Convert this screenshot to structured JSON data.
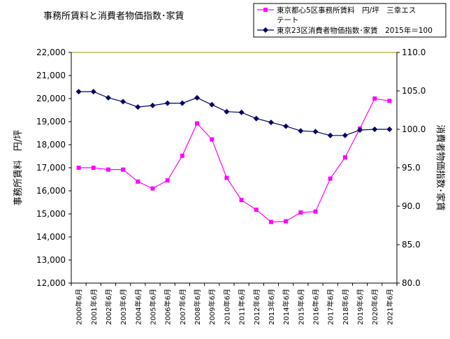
{
  "chart_data": {
    "type": "line",
    "title": "事務所賃料と消費者物価指数･家賃",
    "ylabel_left": "事務所賃料　円/坪",
    "ylabel_right": "消費者物価指数･家賃",
    "ylim_left": [
      12000,
      22000
    ],
    "ylim_right": [
      80.0,
      110.0
    ],
    "yticks_left": [
      "12,000",
      "13,000",
      "14,000",
      "15,000",
      "16,000",
      "17,000",
      "18,000",
      "19,000",
      "20,000",
      "21,000",
      "22,000"
    ],
    "yticks_right": [
      "80.0",
      "85.0",
      "90.0",
      "95.0",
      "100.0",
      "105.0",
      "110.0"
    ],
    "legend_position": "top-right",
    "categories": [
      "2000年6月",
      "2001年6月",
      "2002年6月",
      "2003年6月",
      "2004年6月",
      "2005年6月",
      "2006年6月",
      "2007年6月",
      "2008年6月",
      "2009年6月",
      "2010年6月",
      "2011年6月",
      "2012年6月",
      "2013年6月",
      "2014年6月",
      "2015年6月",
      "2016年6月",
      "2017年6月",
      "2018年6月",
      "2019年6月",
      "2020年6月",
      "2021年6月"
    ],
    "series": [
      {
        "name": "東京都心5区事務所賃料　円/坪　三幸エステート",
        "legend_lines": [
          "東京都心5区事務所賃料　円/坪　三幸エス",
          "テート"
        ],
        "axis": "left",
        "color": "#ff00ff",
        "marker": "square",
        "values": [
          17000,
          17000,
          16920,
          16920,
          16400,
          16100,
          16450,
          17520,
          18920,
          18230,
          16560,
          15600,
          15180,
          14650,
          14680,
          15060,
          15100,
          16530,
          17450,
          18700,
          20000,
          19900
        ]
      },
      {
        "name": "東京23区消費者物価指数･家賃　2015年＝100",
        "legend_lines": [
          "東京23区消費者物価指数･家賃　2015年＝100"
        ],
        "axis": "right",
        "color": "#000066",
        "marker": "diamond",
        "values": [
          104.9,
          104.9,
          104.1,
          103.6,
          102.9,
          103.1,
          103.4,
          103.4,
          104.1,
          103.2,
          102.3,
          102.2,
          101.4,
          100.9,
          100.4,
          99.8,
          99.7,
          99.2,
          99.2,
          99.9,
          100.0,
          100.0
        ]
      }
    ]
  }
}
